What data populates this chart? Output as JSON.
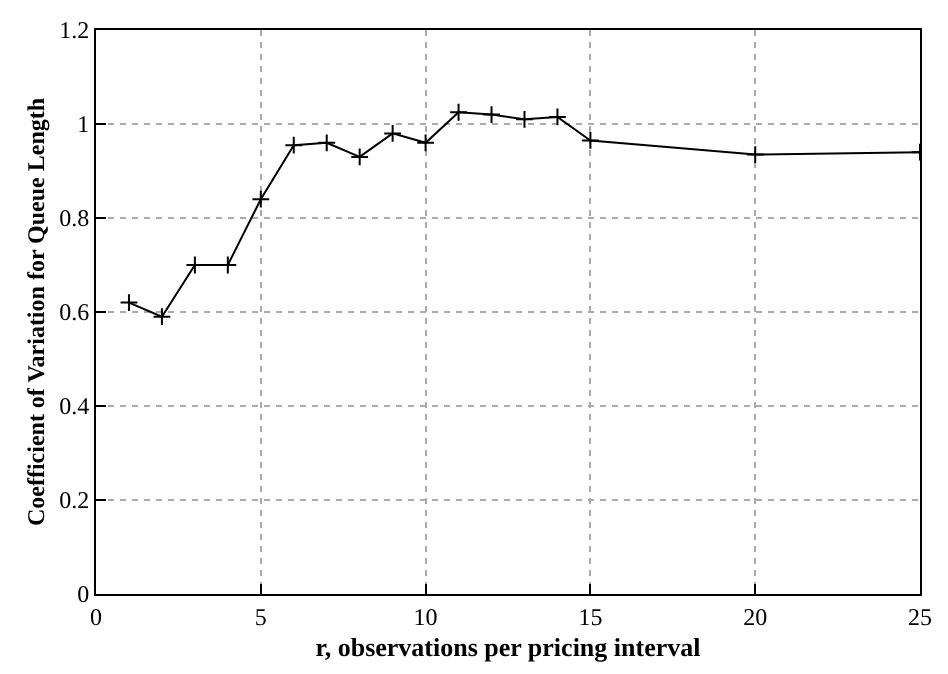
{
  "chart_data": {
    "type": "line",
    "xlabel": "r, observations per pricing interval",
    "ylabel": "Coefficient of Variation for Queue Length",
    "x": [
      1,
      2,
      3,
      4,
      5,
      6,
      7,
      8,
      9,
      10,
      11,
      12,
      13,
      14,
      15,
      20,
      25
    ],
    "series": [
      {
        "color": "#000000",
        "values": [
          0.62,
          0.59,
          0.7,
          0.7,
          0.84,
          0.955,
          0.96,
          0.93,
          0.98,
          0.96,
          1.025,
          1.02,
          1.01,
          1.015,
          0.965,
          0.935,
          0.94
        ]
      }
    ],
    "xlim": [
      0,
      25
    ],
    "xticks": [
      0,
      5,
      10,
      15,
      20,
      25
    ],
    "ylim": [
      0,
      1.2
    ],
    "yticks": [
      0,
      0.2,
      0.4,
      0.6,
      0.8,
      1,
      1.2
    ],
    "grid": true,
    "marker": "cross",
    "line_style": "solid"
  }
}
